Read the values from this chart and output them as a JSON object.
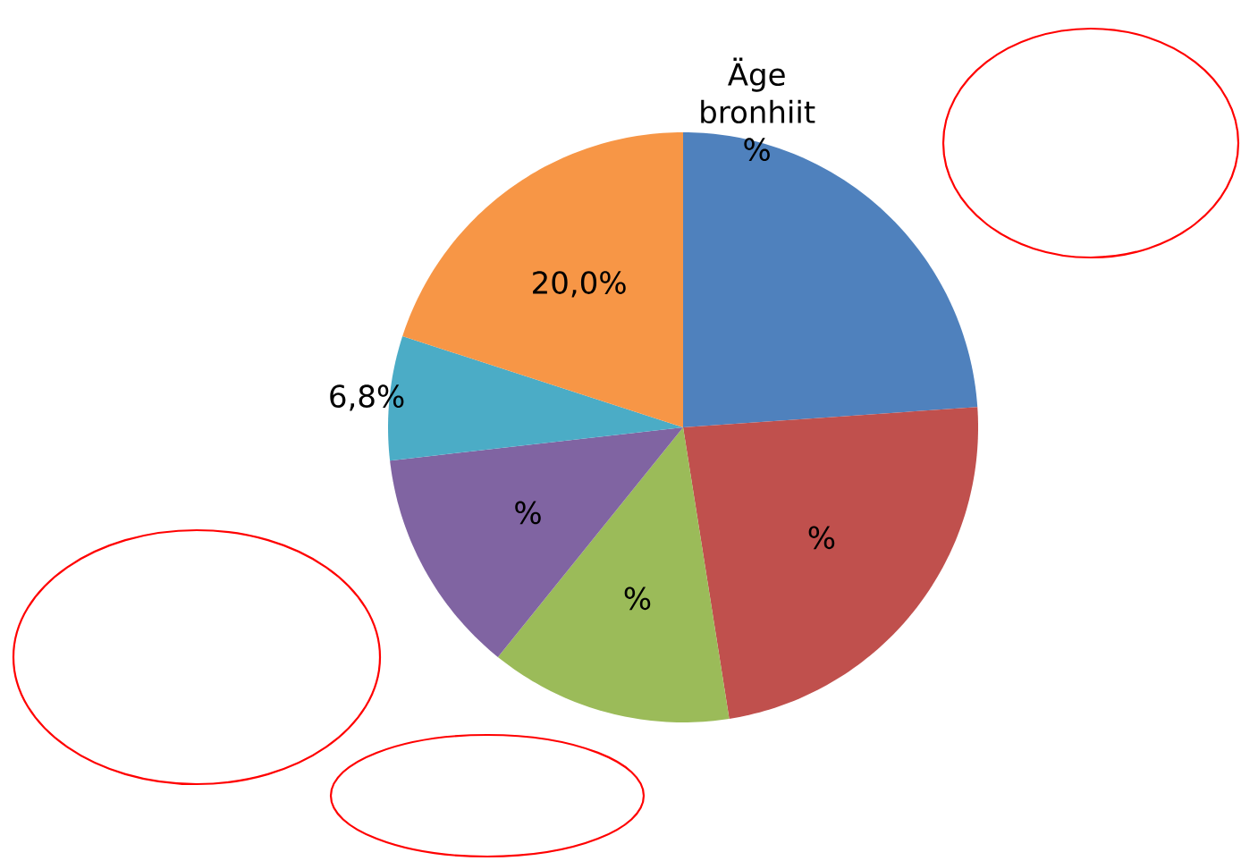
{
  "chart_data": {
    "type": "pie",
    "categories": [
      "Äge bronhiit",
      null,
      null,
      null,
      null,
      null
    ],
    "values": [
      23.9,
      23.6,
      13.3,
      12.4,
      6.8,
      20.0
    ],
    "colors": [
      "#4f81bd",
      "#c0504d",
      "#9bbb59",
      "#8064a2",
      "#4bacc6",
      "#f79646"
    ],
    "value_labels": [
      "%",
      "%",
      "%",
      "%",
      "6,8%",
      "20,0%"
    ]
  }
}
